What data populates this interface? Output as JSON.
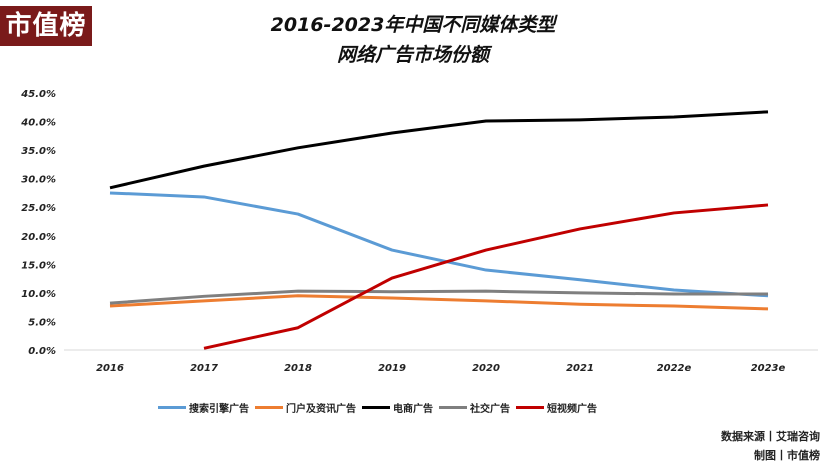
{
  "logo": "市值榜",
  "title_line1": "2016-2023年中国不同媒体类型",
  "title_line2": "网络广告市场份额",
  "source": "数据来源丨艾瑞咨询",
  "made_by": "制图丨市值榜",
  "chart_data": {
    "type": "line",
    "title": "2016-2023年中国不同媒体类型 网络广告市场份额",
    "categories": [
      "2016",
      "2017",
      "2018",
      "2019",
      "2020",
      "2021",
      "2022e",
      "2023e"
    ],
    "y_ticks": [
      "0.0%",
      "5.0%",
      "10.0%",
      "15.0%",
      "20.0%",
      "25.0%",
      "30.0%",
      "35.0%",
      "40.0%",
      "45.0%"
    ],
    "ylim": [
      0,
      45
    ],
    "grid": false,
    "legend_position": "bottom",
    "series": [
      {
        "name": "搜索引擎广告",
        "color": "#5b9bd5",
        "values": [
          27.5,
          26.8,
          23.8,
          17.5,
          14.0,
          12.3,
          10.5,
          9.5
        ]
      },
      {
        "name": "门户及资讯广告",
        "color": "#ed7d31",
        "values": [
          7.7,
          8.6,
          9.5,
          9.1,
          8.6,
          8.0,
          7.7,
          7.2
        ]
      },
      {
        "name": "电商广告",
        "color": "#000000",
        "values": [
          28.4,
          32.2,
          35.4,
          38.0,
          40.1,
          40.3,
          40.8,
          41.7
        ]
      },
      {
        "name": "社交广告",
        "color": "#7f7f7f",
        "values": [
          8.2,
          9.4,
          10.3,
          10.2,
          10.3,
          10.0,
          9.8,
          9.8
        ]
      },
      {
        "name": "短视频广告",
        "color": "#c00000",
        "values": [
          null,
          0.3,
          3.9,
          12.6,
          17.5,
          21.2,
          24.0,
          25.4
        ]
      }
    ]
  }
}
